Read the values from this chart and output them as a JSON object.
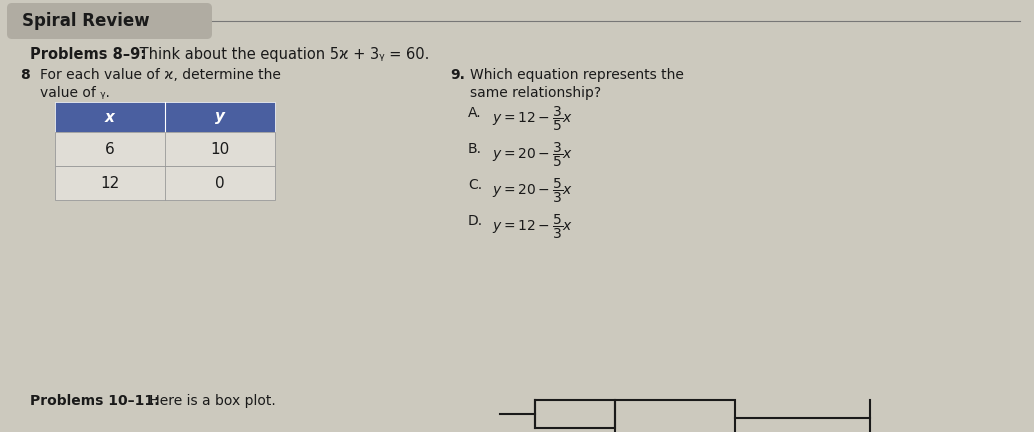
{
  "title": "Spiral Review",
  "bg_color": "#ccc9be",
  "title_bg_color": "#b0aca2",
  "title_text_color": "#1a1a1a",
  "problems89_bold": "Problems 8–9:",
  "problems89_rest": " Think about the equation 5ϰ + 3ᵧ = 60.",
  "prob8_num": "8",
  "prob8_text1": "For each value of ϰ, determine the",
  "prob8_text2": "value of ᵧ.",
  "table_header": [
    "x",
    "y"
  ],
  "table_rows": [
    [
      "6",
      "10"
    ],
    [
      "12",
      "0"
    ]
  ],
  "table_header_bg": "#4a5fa0",
  "table_header_text_color": "#ffffff",
  "table_row_bg": "#e0ddd6",
  "table_border_color": "#999999",
  "prob9_num": "9.",
  "prob9_text1": "Which equation represents the",
  "prob9_text2": "same relationship?",
  "choices": [
    {
      "letter": "A.",
      "text": "$y = 12 - \\dfrac{3}{5}x$"
    },
    {
      "letter": "B.",
      "text": "$y = 20 - \\dfrac{3}{5}x$"
    },
    {
      "letter": "C.",
      "text": "$y = 20 - \\dfrac{5}{3}x$"
    },
    {
      "letter": "D.",
      "text": "$y = 12 - \\dfrac{5}{3}x$"
    }
  ],
  "prob1011_bold": "Problems 10–11:",
  "prob1011_rest": " Here is a box plot.",
  "separator_color": "#777777",
  "main_text_color": "#1a1a1a",
  "body_fontsize": 10,
  "title_fontsize": 12,
  "header_fontsize": 10.5
}
